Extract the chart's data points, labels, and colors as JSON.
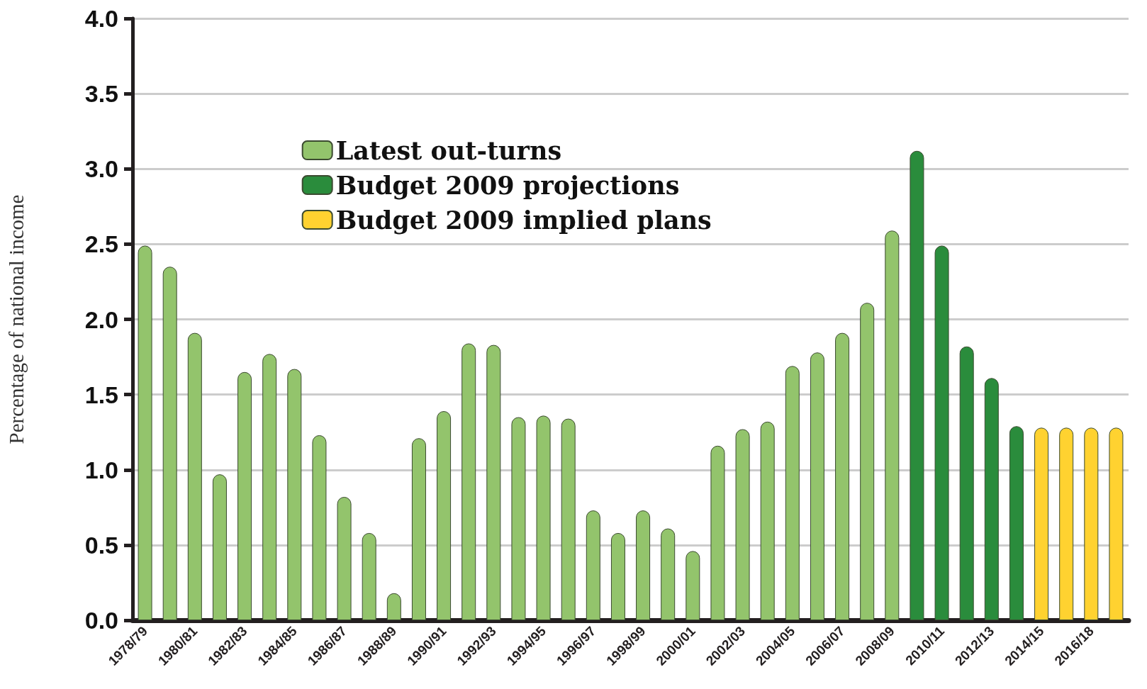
{
  "chart_data": {
    "type": "bar",
    "ylabel": "Percentage of national income",
    "categories": [
      "1978/79",
      null,
      "1980/81",
      null,
      "1982/83",
      null,
      "1984/85",
      null,
      "1986/87",
      null,
      "1988/89",
      null,
      "1990/91",
      null,
      "1992/93",
      null,
      "1994/95",
      null,
      "1996/97",
      null,
      "1998/99",
      null,
      "2000/01",
      null,
      "2002/03",
      null,
      "2004/05",
      null,
      "2006/07",
      null,
      "2008/09",
      null,
      "2010/11",
      null,
      "2012/13",
      null,
      "2014/15",
      null,
      "2016/18",
      null
    ],
    "series": [
      {
        "name": "Latest out-turns",
        "color": "#93c46c",
        "values": [
          2.49,
          2.35,
          1.91,
          0.97,
          1.65,
          1.77,
          1.67,
          1.23,
          0.82,
          0.58,
          0.18,
          1.21,
          1.39,
          1.84,
          1.83,
          1.35,
          1.36,
          1.34,
          0.73,
          0.58,
          0.73,
          0.61,
          0.46,
          1.16,
          1.27,
          1.32,
          1.69,
          1.78,
          1.91,
          2.11,
          2.59,
          null,
          null,
          null,
          null,
          null,
          null,
          null,
          null,
          null
        ]
      },
      {
        "name": "Budget 2009 projections",
        "color": "#2a8c3c",
        "values": [
          null,
          null,
          null,
          null,
          null,
          null,
          null,
          null,
          null,
          null,
          null,
          null,
          null,
          null,
          null,
          null,
          null,
          null,
          null,
          null,
          null,
          null,
          null,
          null,
          null,
          null,
          null,
          null,
          null,
          null,
          null,
          3.12,
          2.49,
          1.82,
          1.61,
          1.29,
          null,
          null,
          null,
          null
        ]
      },
      {
        "name": "Budget 2009 implied plans",
        "color": "#ffd230",
        "values": [
          null,
          null,
          null,
          null,
          null,
          null,
          null,
          null,
          null,
          null,
          null,
          null,
          null,
          null,
          null,
          null,
          null,
          null,
          null,
          null,
          null,
          null,
          null,
          null,
          null,
          null,
          null,
          null,
          null,
          null,
          null,
          null,
          null,
          null,
          null,
          null,
          1.28,
          1.28,
          1.28,
          1.28
        ]
      }
    ],
    "ylim": [
      0,
      4
    ],
    "yticks": [
      {
        "value": 0,
        "label": "0.0"
      },
      0.5,
      {
        "value": 1,
        "label": "1.0"
      },
      1.5,
      {
        "value": 2,
        "label": "2.0"
      },
      2.5,
      {
        "value": 3,
        "label": "3.0"
      },
      3.5,
      {
        "value": 4,
        "label": "4.0"
      }
    ],
    "grid": "y",
    "legend": "top left"
  }
}
